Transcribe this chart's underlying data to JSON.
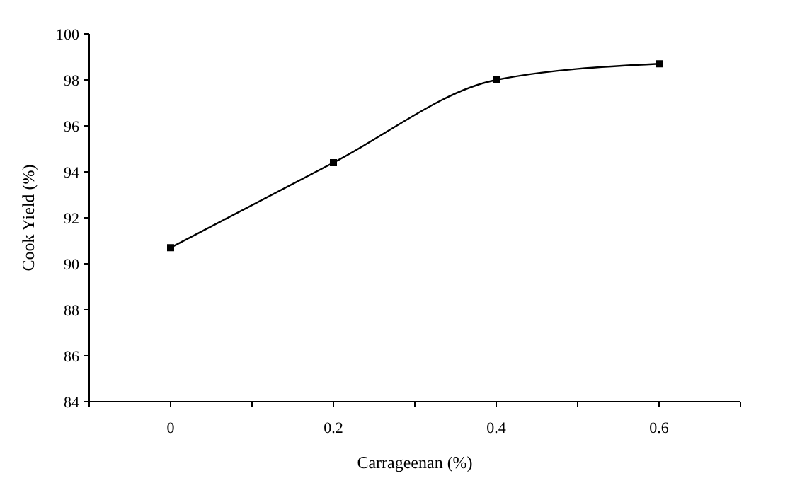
{
  "chart_data": {
    "type": "line",
    "xlabel": "Carrageenan (%)",
    "ylabel": "Cook Yield (%)",
    "x": [
      0,
      0.2,
      0.4,
      0.6
    ],
    "series": [
      {
        "color": "#000000",
        "values": [
          90.7,
          94.4,
          98.0,
          98.7
        ]
      }
    ],
    "xlim": [
      -0.1,
      0.7
    ],
    "xticks": [
      {
        "value": -0.1,
        "label": null
      },
      0,
      {
        "value": 0.1,
        "label": null
      },
      0.2,
      {
        "value": 0.3,
        "label": null
      },
      0.4,
      {
        "value": 0.5,
        "label": null
      },
      0.6,
      {
        "value": 0.7,
        "label": null
      }
    ],
    "ylim": [
      84,
      100
    ],
    "yticks": [
      84,
      86,
      88,
      90,
      92,
      94,
      96,
      98,
      100
    ],
    "marker": "square",
    "line_style": "solid"
  }
}
